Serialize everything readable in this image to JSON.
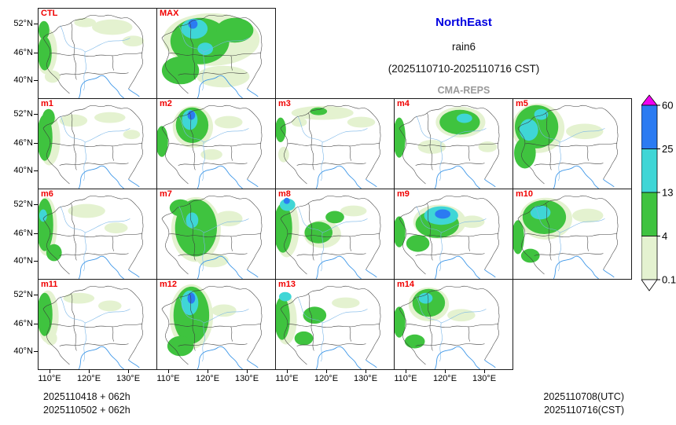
{
  "header": {
    "region": "NorthEast",
    "variable": "rain6",
    "period": "(2025110710-2025110716 CST)",
    "model": "CMA-REPS"
  },
  "axes": {
    "y_ticks": [
      "52°N",
      "46°N",
      "40°N"
    ],
    "x_ticks": [
      "110°E",
      "120°E",
      "130°E"
    ]
  },
  "footer": {
    "left_line1": "2025110418 + 062h",
    "left_line2": "2025110502 + 062h",
    "right_line1": "2025110708(UTC)",
    "right_line2": "2025110716(CST)"
  },
  "colorbar": {
    "levels": [
      "60",
      "25",
      "13",
      "4",
      "0.1"
    ],
    "colors": {
      "over": "#F000F0",
      "blue": "#2B7BF2",
      "cyan": "#3FD6D6",
      "green": "#3FC33F",
      "pale": "#E4F2D0",
      "under": "#FFFFFF"
    }
  },
  "chart_data": {
    "type": "heatmap",
    "title": "NorthEast rain6 (2025110710-2025110716 CST) CMA-REPS ensemble 6h precipitation",
    "levels_mm": [
      0.1,
      4,
      13,
      25,
      60
    ],
    "lat_ticks": [
      52,
      46,
      40
    ],
    "lon_ticks": [
      110,
      120,
      130
    ],
    "panels": [
      {
        "label": "CTL",
        "row": 0,
        "col": 0,
        "blobs": [
          [
            10,
            55,
            14,
            30,
            "p"
          ],
          [
            8,
            58,
            9,
            22,
            "g"
          ],
          [
            7,
            28,
            7,
            12,
            "g"
          ],
          [
            95,
            24,
            26,
            10,
            "p"
          ],
          [
            122,
            42,
            14,
            7,
            "p"
          ],
          [
            60,
            18,
            14,
            6,
            "p"
          ],
          [
            18,
            88,
            10,
            8,
            "p"
          ]
        ]
      },
      {
        "label": "MAX",
        "row": 0,
        "col": 1,
        "blobs": [
          [
            70,
            40,
            62,
            34,
            "p"
          ],
          [
            85,
            88,
            34,
            14,
            "p"
          ],
          [
            55,
            42,
            38,
            30,
            "g"
          ],
          [
            30,
            80,
            24,
            18,
            "g"
          ],
          [
            100,
            28,
            24,
            16,
            "g"
          ],
          [
            48,
            26,
            17,
            13,
            "c"
          ],
          [
            62,
            52,
            10,
            8,
            "c"
          ],
          [
            46,
            20,
            6,
            6,
            "b"
          ]
        ]
      },
      {
        "label": "m1",
        "row": 1,
        "col": 0,
        "blobs": [
          [
            8,
            50,
            10,
            30,
            "g"
          ],
          [
            13,
            24,
            8,
            11,
            "g"
          ],
          [
            14,
            52,
            14,
            34,
            "p"
          ],
          [
            45,
            28,
            18,
            8,
            "p"
          ],
          [
            92,
            24,
            20,
            7,
            "p"
          ],
          [
            120,
            46,
            11,
            6,
            "p"
          ]
        ]
      },
      {
        "label": "m2",
        "row": 1,
        "col": 1,
        "blobs": [
          [
            46,
            36,
            26,
            27,
            "p"
          ],
          [
            45,
            34,
            21,
            23,
            "g"
          ],
          [
            42,
            27,
            10,
            13,
            "c"
          ],
          [
            44,
            21,
            5,
            6,
            "b"
          ],
          [
            6,
            55,
            8,
            20,
            "g"
          ],
          [
            92,
            30,
            18,
            8,
            "p"
          ],
          [
            70,
            72,
            14,
            7,
            "p"
          ]
        ]
      },
      {
        "label": "m3",
        "row": 1,
        "col": 2,
        "blobs": [
          [
            60,
            18,
            40,
            9,
            "p"
          ],
          [
            110,
            30,
            18,
            7,
            "p"
          ],
          [
            6,
            40,
            7,
            16,
            "g"
          ],
          [
            10,
            72,
            7,
            10,
            "p"
          ],
          [
            55,
            16,
            11,
            5,
            "g"
          ],
          [
            30,
            30,
            10,
            6,
            "p"
          ]
        ]
      },
      {
        "label": "m4",
        "row": 1,
        "col": 3,
        "blobs": [
          [
            85,
            30,
            32,
            20,
            "p"
          ],
          [
            84,
            30,
            26,
            16,
            "g"
          ],
          [
            90,
            25,
            10,
            6,
            "c"
          ],
          [
            6,
            50,
            8,
            26,
            "g"
          ],
          [
            48,
            62,
            18,
            9,
            "p"
          ],
          [
            120,
            62,
            12,
            7,
            "p"
          ]
        ]
      },
      {
        "label": "m5",
        "row": 1,
        "col": 4,
        "blobs": [
          [
            32,
            38,
            34,
            32,
            "p"
          ],
          [
            30,
            36,
            28,
            28,
            "g"
          ],
          [
            15,
            70,
            14,
            20,
            "g"
          ],
          [
            20,
            40,
            12,
            14,
            "c"
          ],
          [
            36,
            20,
            9,
            7,
            "c"
          ],
          [
            92,
            42,
            24,
            10,
            "p"
          ]
        ]
      },
      {
        "label": "m6",
        "row": 2,
        "col": 0,
        "blobs": [
          [
            10,
            48,
            14,
            38,
            "p"
          ],
          [
            8,
            46,
            11,
            34,
            "g"
          ],
          [
            20,
            82,
            10,
            11,
            "g"
          ],
          [
            6,
            34,
            5,
            8,
            "c"
          ],
          [
            62,
            28,
            24,
            9,
            "p"
          ],
          [
            100,
            50,
            15,
            7,
            "p"
          ]
        ]
      },
      {
        "label": "m7",
        "row": 2,
        "col": 1,
        "blobs": [
          [
            50,
            52,
            32,
            42,
            "p"
          ],
          [
            50,
            50,
            27,
            37,
            "g"
          ],
          [
            30,
            24,
            14,
            11,
            "g"
          ],
          [
            45,
            40,
            8,
            10,
            "c"
          ],
          [
            92,
            38,
            18,
            10,
            "p"
          ],
          [
            72,
            92,
            20,
            9,
            "p"
          ]
        ]
      },
      {
        "label": "m8",
        "row": 2,
        "col": 2,
        "blobs": [
          [
            14,
            50,
            16,
            38,
            "p"
          ],
          [
            9,
            50,
            12,
            32,
            "g"
          ],
          [
            15,
            20,
            10,
            8,
            "c"
          ],
          [
            14,
            15,
            4,
            4,
            "b"
          ],
          [
            60,
            58,
            24,
            18,
            "p"
          ],
          [
            55,
            56,
            18,
            14,
            "g"
          ],
          [
            76,
            36,
            12,
            8,
            "g"
          ],
          [
            100,
            28,
            17,
            7,
            "p"
          ]
        ]
      },
      {
        "label": "m9",
        "row": 2,
        "col": 3,
        "blobs": [
          [
            58,
            42,
            34,
            22,
            "p"
          ],
          [
            55,
            45,
            28,
            18,
            "g"
          ],
          [
            60,
            34,
            22,
            12,
            "c"
          ],
          [
            62,
            32,
            10,
            6,
            "b"
          ],
          [
            30,
            70,
            15,
            11,
            "g"
          ],
          [
            6,
            55,
            8,
            20,
            "g"
          ],
          [
            100,
            42,
            16,
            8,
            "p"
          ]
        ]
      },
      {
        "label": "m10",
        "row": 2,
        "col": 4,
        "blobs": [
          [
            42,
            38,
            34,
            27,
            "p"
          ],
          [
            40,
            36,
            28,
            22,
            "g"
          ],
          [
            35,
            30,
            13,
            9,
            "c"
          ],
          [
            6,
            62,
            8,
            22,
            "g"
          ],
          [
            22,
            86,
            12,
            9,
            "g"
          ],
          [
            96,
            34,
            20,
            9,
            "p"
          ]
        ]
      },
      {
        "label": "m11",
        "row": 3,
        "col": 0,
        "blobs": [
          [
            12,
            48,
            14,
            34,
            "p"
          ],
          [
            8,
            45,
            10,
            28,
            "g"
          ],
          [
            16,
            76,
            8,
            9,
            "p"
          ],
          [
            52,
            24,
            20,
            7,
            "p"
          ],
          [
            92,
            34,
            15,
            7,
            "p"
          ]
        ]
      },
      {
        "label": "m12",
        "row": 3,
        "col": 1,
        "blobs": [
          [
            44,
            48,
            28,
            42,
            "p"
          ],
          [
            44,
            46,
            23,
            37,
            "g"
          ],
          [
            30,
            86,
            17,
            13,
            "g"
          ],
          [
            42,
            30,
            11,
            16,
            "c"
          ],
          [
            44,
            24,
            5,
            7,
            "b"
          ],
          [
            86,
            40,
            16,
            8,
            "p"
          ]
        ]
      },
      {
        "label": "m13",
        "row": 3,
        "col": 2,
        "blobs": [
          [
            13,
            52,
            14,
            32,
            "p"
          ],
          [
            8,
            50,
            10,
            28,
            "g"
          ],
          [
            12,
            22,
            8,
            6,
            "c"
          ],
          [
            50,
            46,
            15,
            11,
            "g"
          ],
          [
            36,
            76,
            12,
            9,
            "g"
          ],
          [
            90,
            30,
            18,
            7,
            "p"
          ]
        ]
      },
      {
        "label": "m14",
        "row": 3,
        "col": 3,
        "blobs": [
          [
            44,
            32,
            26,
            22,
            "p"
          ],
          [
            44,
            30,
            21,
            18,
            "g"
          ],
          [
            40,
            24,
            9,
            7,
            "c"
          ],
          [
            6,
            55,
            8,
            20,
            "g"
          ],
          [
            26,
            80,
            13,
            9,
            "g"
          ],
          [
            86,
            46,
            18,
            8,
            "p"
          ]
        ]
      }
    ]
  }
}
